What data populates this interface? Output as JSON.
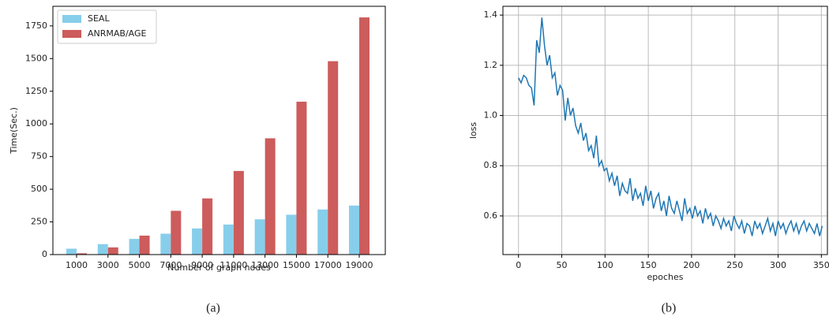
{
  "chart_data": [
    {
      "type": "bar",
      "xlabel": "Number of graph nodes",
      "ylabel": "Time(Sec.)",
      "categories": [
        "1000",
        "3000",
        "5000",
        "7000",
        "9000",
        "11000",
        "13000",
        "15000",
        "17000",
        "19000"
      ],
      "series": [
        {
          "name": "SEAL",
          "color": "#87ceeb",
          "values": [
            45,
            80,
            120,
            160,
            200,
            230,
            270,
            305,
            345,
            375
          ]
        },
        {
          "name": "ANRMAB/AGE",
          "color": "#cd5c5c",
          "values": [
            10,
            55,
            145,
            335,
            430,
            640,
            890,
            1170,
            1480,
            1815
          ]
        }
      ],
      "ylim": [
        0,
        1900
      ],
      "yticks": [
        0,
        250,
        500,
        750,
        1000,
        1250,
        1500,
        1750
      ],
      "grid": false,
      "legend": "upper left"
    },
    {
      "type": "line",
      "xlabel": "epoches",
      "ylabel": "loss",
      "color": "#1f77b4",
      "x": [
        0,
        3,
        6,
        9,
        12,
        15,
        18,
        21,
        24,
        27,
        30,
        33,
        36,
        39,
        42,
        45,
        48,
        51,
        54,
        57,
        60,
        63,
        66,
        69,
        72,
        75,
        78,
        81,
        84,
        87,
        90,
        93,
        96,
        99,
        102,
        105,
        108,
        111,
        114,
        117,
        120,
        123,
        126,
        129,
        132,
        135,
        138,
        141,
        144,
        147,
        150,
        153,
        156,
        159,
        162,
        165,
        168,
        171,
        174,
        177,
        180,
        183,
        186,
        189,
        192,
        195,
        198,
        201,
        204,
        207,
        210,
        213,
        216,
        219,
        222,
        225,
        228,
        231,
        234,
        237,
        240,
        243,
        246,
        249,
        252,
        255,
        258,
        261,
        264,
        267,
        270,
        273,
        276,
        279,
        282,
        285,
        288,
        291,
        294,
        297,
        300,
        303,
        306,
        309,
        312,
        315,
        318,
        321,
        324,
        327,
        330,
        333,
        336,
        339,
        342,
        345,
        348,
        351
      ],
      "values": [
        1.15,
        1.13,
        1.16,
        1.15,
        1.12,
        1.11,
        1.04,
        1.3,
        1.25,
        1.39,
        1.28,
        1.2,
        1.24,
        1.15,
        1.17,
        1.08,
        1.12,
        1.1,
        0.98,
        1.07,
        1.0,
        1.03,
        0.96,
        0.93,
        0.97,
        0.9,
        0.93,
        0.86,
        0.88,
        0.83,
        0.92,
        0.8,
        0.82,
        0.78,
        0.79,
        0.74,
        0.77,
        0.72,
        0.76,
        0.68,
        0.73,
        0.7,
        0.69,
        0.75,
        0.66,
        0.71,
        0.67,
        0.69,
        0.64,
        0.72,
        0.66,
        0.7,
        0.63,
        0.67,
        0.69,
        0.62,
        0.66,
        0.6,
        0.68,
        0.63,
        0.61,
        0.66,
        0.62,
        0.58,
        0.67,
        0.61,
        0.63,
        0.59,
        0.64,
        0.6,
        0.62,
        0.57,
        0.63,
        0.59,
        0.61,
        0.56,
        0.6,
        0.58,
        0.55,
        0.59,
        0.56,
        0.58,
        0.54,
        0.6,
        0.57,
        0.55,
        0.58,
        0.53,
        0.57,
        0.56,
        0.52,
        0.58,
        0.55,
        0.57,
        0.53,
        0.56,
        0.59,
        0.54,
        0.57,
        0.52,
        0.58,
        0.55,
        0.57,
        0.53,
        0.56,
        0.58,
        0.54,
        0.57,
        0.53,
        0.56,
        0.58,
        0.54,
        0.57,
        0.55,
        0.53,
        0.57,
        0.52,
        0.56
      ],
      "xlim": [
        -18,
        357
      ],
      "xticks": [
        0,
        50,
        100,
        150,
        200,
        250,
        300,
        350
      ],
      "ylim": [
        0.446,
        1.435
      ],
      "yticks": [
        0.6,
        0.8,
        {
          "value": 1,
          "label": "1.0"
        },
        1.2,
        1.4
      ],
      "grid": true
    }
  ],
  "captions": [
    "(a)",
    "(b)"
  ]
}
